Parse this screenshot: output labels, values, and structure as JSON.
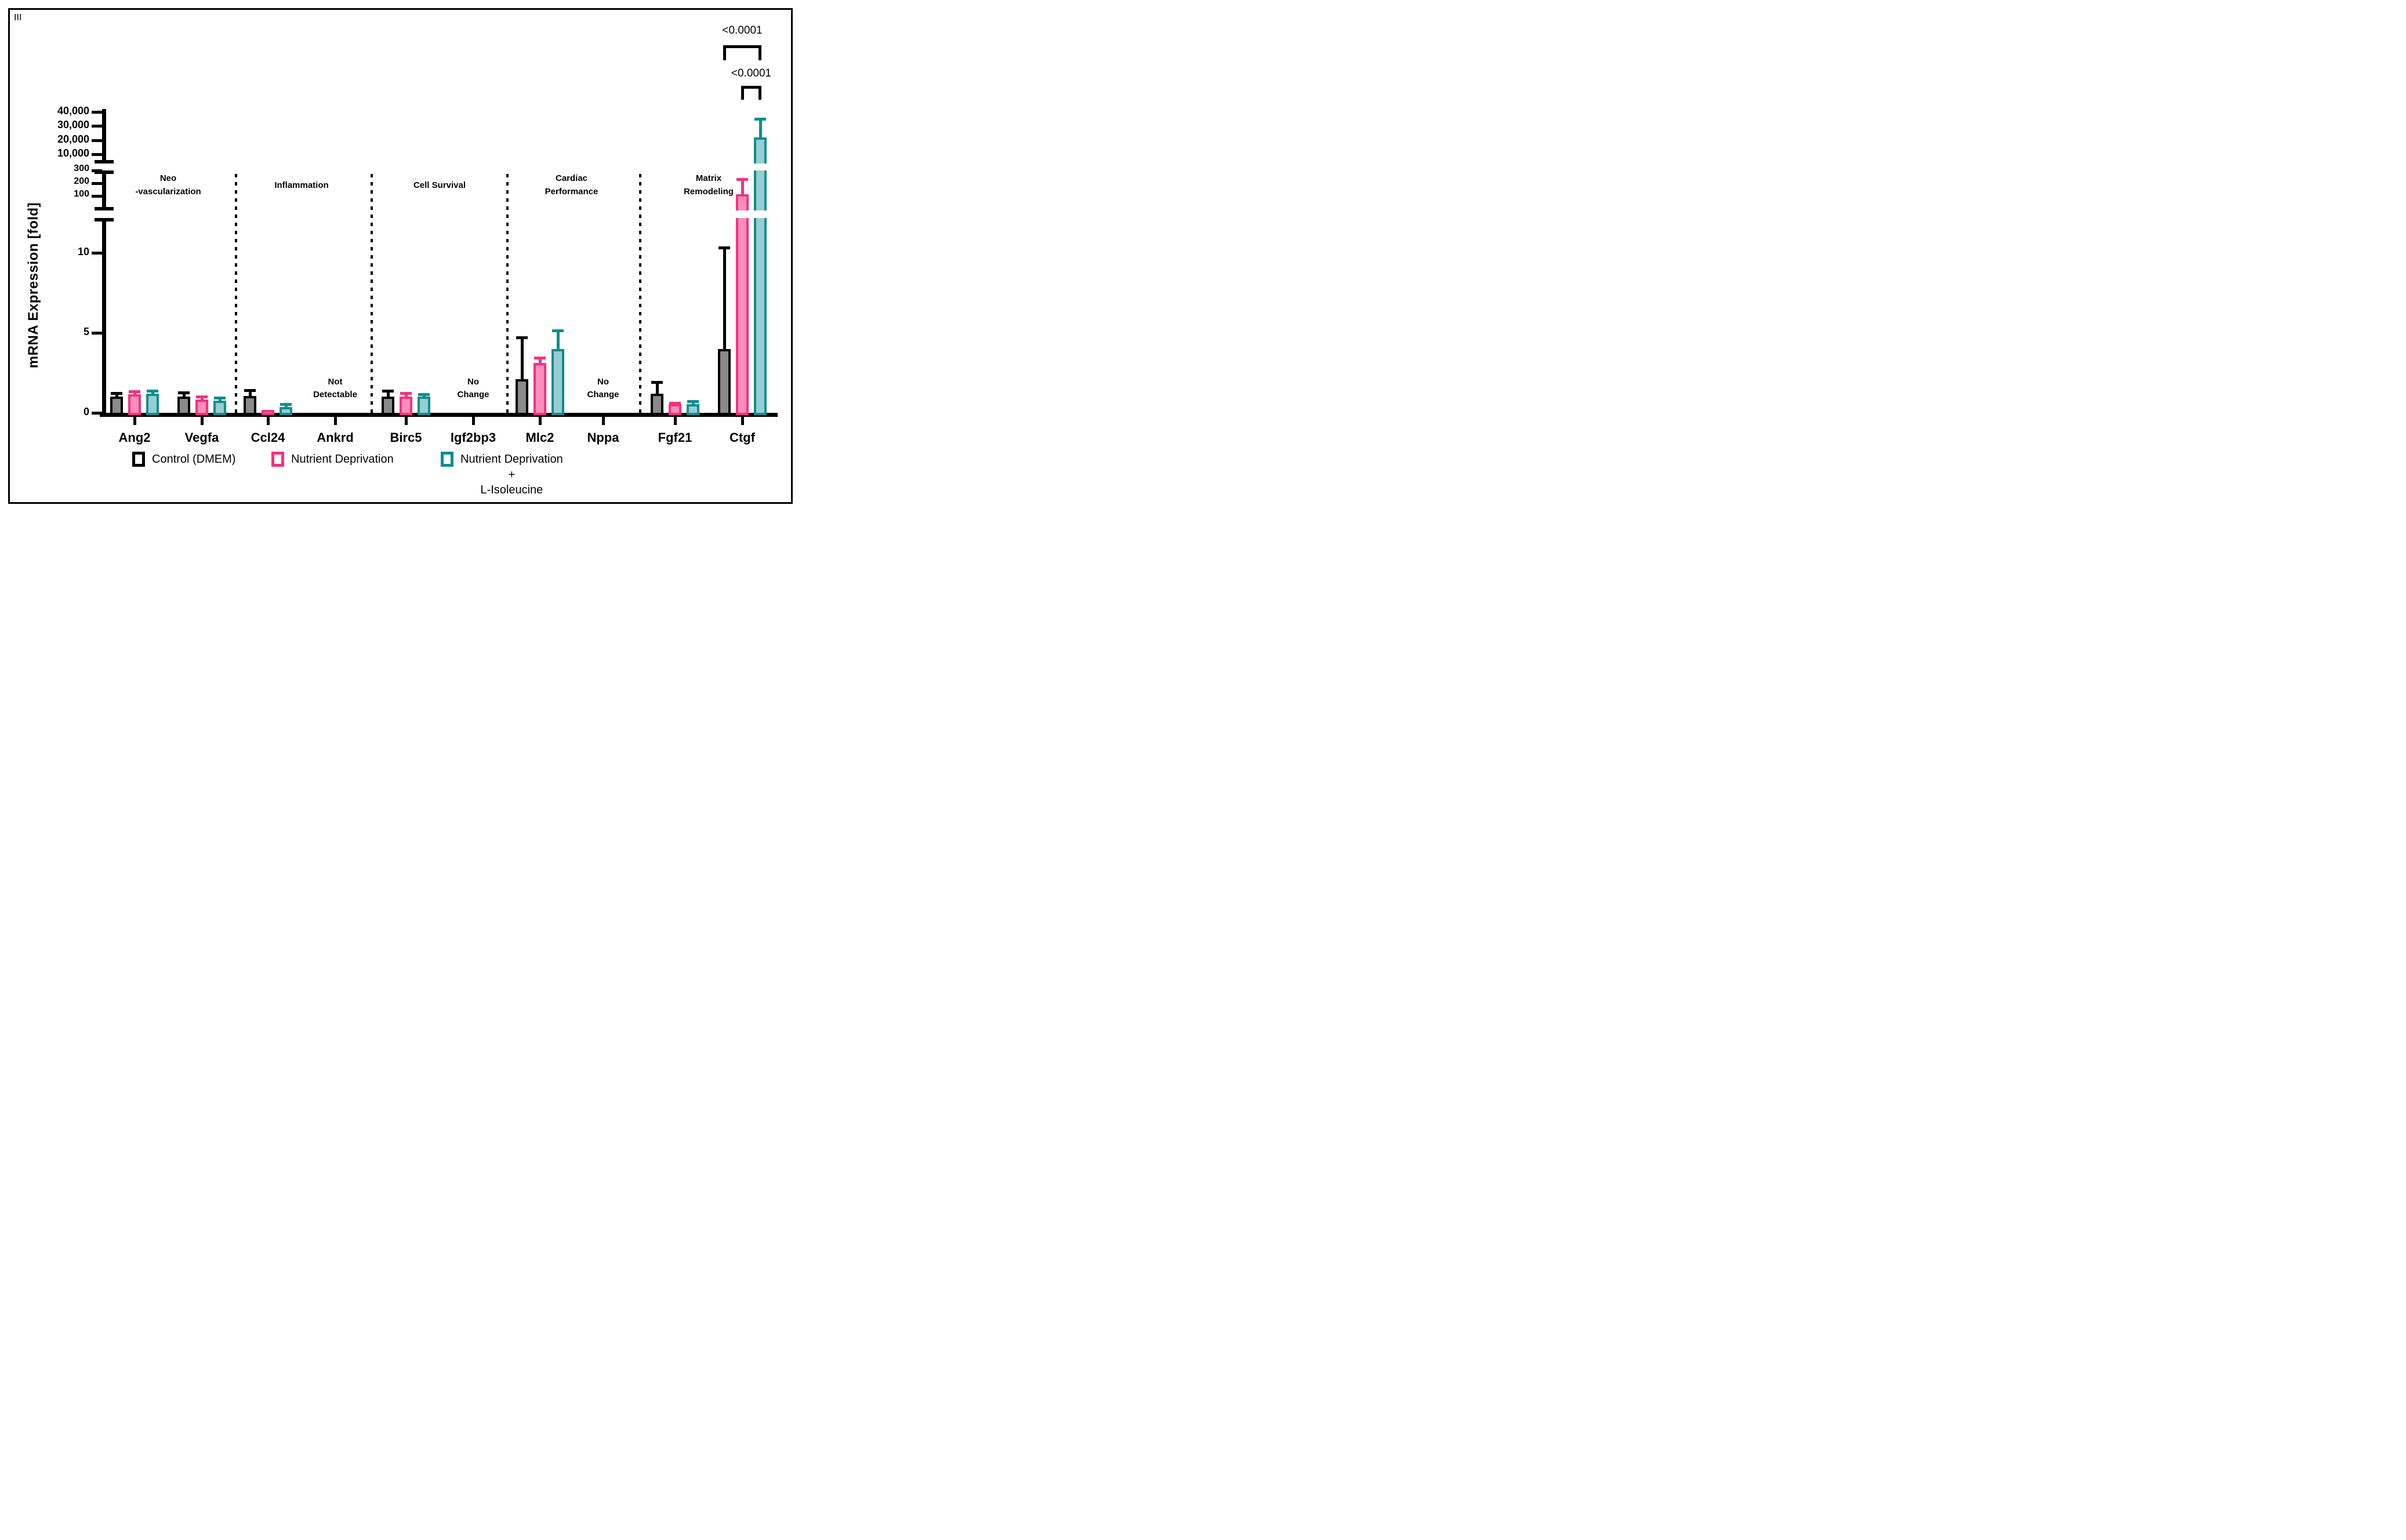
{
  "panel": {
    "label": "III"
  },
  "y_axis_title": "mRNA Expression [fold]",
  "colors": {
    "control_border": "#000000",
    "control_fill": "#8A8A8A",
    "nd_border": "#F5317F",
    "nd_fill": "#FA8EBB",
    "ndi_border": "#0E8D90",
    "ndi_fill": "#96CDD0",
    "axis": "#000000",
    "background": "#FFFFFF"
  },
  "chart_data": {
    "type": "bar",
    "title": "",
    "xlabel": "",
    "ylabel": "mRNA Expression [fold]",
    "legend_position": "bottom",
    "grid": false,
    "categories": [
      "Ang2",
      "Vegfa",
      "Ccl24",
      "Ankrd",
      "Birc5",
      "Igf2bp3",
      "Mlc2",
      "Nppa",
      "Fgf21",
      "Ctgf"
    ],
    "gene_groups": [
      {
        "label_lines": [
          "Neo",
          "-vascularization"
        ],
        "genes": [
          "Ang2",
          "Vegfa"
        ]
      },
      {
        "label_lines": [
          "Inflammation"
        ],
        "genes": [
          "Ccl24",
          "Ankrd"
        ]
      },
      {
        "label_lines": [
          "Cell Survival"
        ],
        "genes": [
          "Birc5",
          "Igf2bp3"
        ]
      },
      {
        "label_lines": [
          "Cardiac",
          "Performance"
        ],
        "genes": [
          "Mlc2",
          "Nppa"
        ]
      },
      {
        "label_lines": [
          "Matrix",
          "Remodeling"
        ],
        "genes": [
          "Fgf21",
          "Ctgf"
        ]
      }
    ],
    "series": [
      {
        "name": "Control (DMEM)",
        "border": "#000000",
        "fill": "#8A8A8A",
        "values": [
          1.0,
          1.0,
          1.05,
          null,
          1.0,
          null,
          2.1,
          null,
          1.2,
          4.0
        ],
        "error_tops": [
          1.3,
          1.35,
          1.5,
          null,
          1.45,
          null,
          4.8,
          null,
          2.0,
          10.4
        ]
      },
      {
        "name": "Nutrient Deprivation",
        "border": "#F5317F",
        "fill": "#FA8EBB",
        "values": [
          1.15,
          0.85,
          0.18,
          null,
          1.0,
          null,
          3.1,
          null,
          0.55,
          115
        ],
        "error_tops": [
          1.4,
          1.1,
          null,
          null,
          1.3,
          null,
          3.5,
          null,
          0.7,
          240
        ]
      },
      {
        "name": "Nutrient Deprivation + L-Isoleucine",
        "name_lines": [
          "Nutrient Deprivation",
          "+",
          "L-Isoleucine"
        ],
        "border": "#0E8D90",
        "fill": "#96CDD0",
        "values": [
          1.2,
          0.75,
          0.35,
          null,
          1.0,
          null,
          4.0,
          null,
          0.55,
          22000
        ],
        "error_tops": [
          1.45,
          1.0,
          0.6,
          null,
          1.25,
          null,
          5.2,
          null,
          0.8,
          36000
        ]
      }
    ],
    "annotations": [
      {
        "text_lines": [
          "Not",
          "Detectable"
        ],
        "gene": "Ankrd"
      },
      {
        "text_lines": [
          "No",
          "Change"
        ],
        "gene": "Igf2bp3"
      },
      {
        "text_lines": [
          "No",
          "Change"
        ],
        "gene": "Nppa"
      }
    ],
    "significance": [
      {
        "label": "<0.0001",
        "gene": "Ctgf",
        "from_series": 0,
        "to_series": 2
      },
      {
        "label": "<0.0001",
        "gene": "Ctgf",
        "from_series": 1,
        "to_series": 2
      }
    ],
    "y_axis": {
      "segments": [
        {
          "name": "linear",
          "ticks": [
            {
              "v": 0,
              "label": "0"
            },
            {
              "v": 5,
              "label": "5"
            },
            {
              "v": 10,
              "label": "10"
            }
          ]
        },
        {
          "name": "hundreds",
          "ticks": [
            {
              "v": 100,
              "label": "100"
            },
            {
              "v": 200,
              "label": "200"
            },
            {
              "v": 300,
              "label": "300"
            }
          ]
        },
        {
          "name": "ten_thousands",
          "ticks": [
            {
              "v": 10000,
              "label": "10,000"
            },
            {
              "v": 20000,
              "label": "20,000"
            },
            {
              "v": 30000,
              "label": "30,000"
            },
            {
              "v": 40000,
              "label": "40,000"
            }
          ]
        }
      ],
      "breaks": [
        {
          "between": [
            10,
            100
          ]
        },
        {
          "between": [
            300,
            10000
          ]
        }
      ]
    }
  }
}
